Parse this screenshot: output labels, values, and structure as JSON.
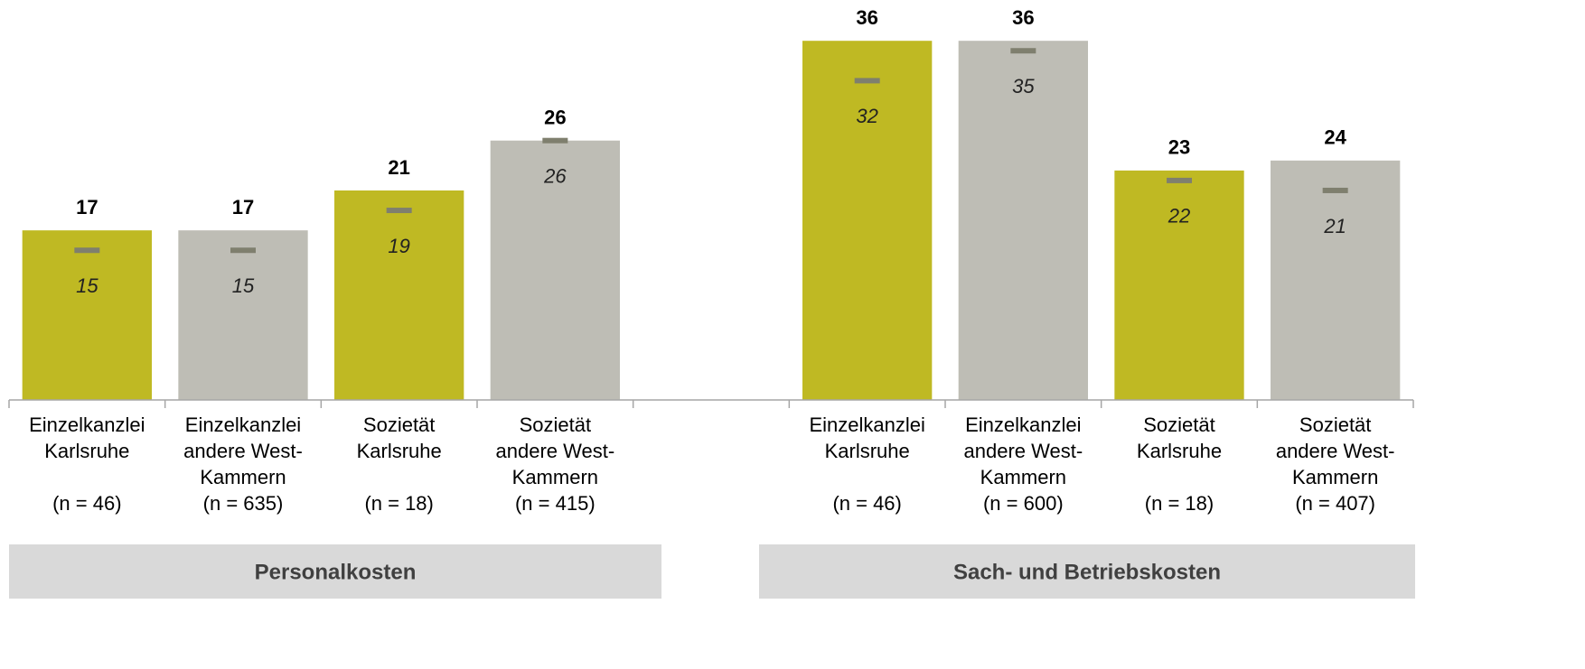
{
  "chart_data": {
    "type": "bar",
    "categories": [
      [
        "Einzelkanzlei",
        "Karlsruhe"
      ],
      [
        "Einzelkanzlei",
        "andere West-",
        "Kammern"
      ],
      [
        "Sozietät",
        "Karlsruhe"
      ],
      [
        "Sozietät",
        "andere West-",
        "Kammern"
      ],
      null,
      [
        "Einzelkanzlei",
        "Karlsruhe"
      ],
      [
        "Einzelkanzlei",
        "andere West-",
        "Kammern"
      ],
      [
        "Sozietät",
        "Karlsruhe"
      ],
      [
        "Sozietät",
        "andere West-",
        "Kammern"
      ]
    ],
    "n_labels": [
      "(n = 46)",
      "(n = 635)",
      "(n = 18)",
      "(n = 415)",
      null,
      "(n = 46)",
      "(n = 600)",
      "(n = 18)",
      "(n = 407)"
    ],
    "values": [
      17,
      17,
      21,
      26,
      null,
      36,
      36,
      23,
      24
    ],
    "colors": [
      "#bfb923",
      "#bebdb5",
      "#bfb923",
      "#bebdb5",
      null,
      "#bfb923",
      "#bebdb5",
      "#bfb923",
      "#bebdb5"
    ],
    "marker_values": [
      15,
      15,
      19,
      26,
      null,
      32,
      35,
      22,
      21
    ],
    "marker_color": "#7f7f6e",
    "group_labels": [
      "Personalkosten",
      "Sach- und Betriebskosten"
    ],
    "ylim": [
      0,
      40
    ]
  }
}
